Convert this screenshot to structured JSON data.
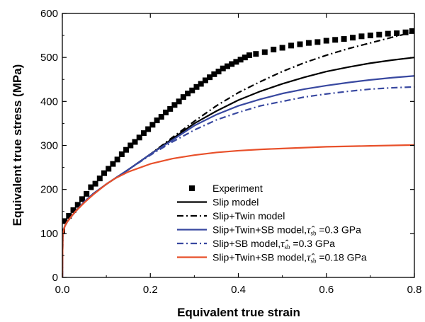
{
  "chart_data": {
    "type": "line",
    "xlabel": "Equivalent true strain",
    "ylabel": "Equivalent true stress (MPa)",
    "xlim": [
      0,
      0.8
    ],
    "ylim": [
      0,
      600
    ],
    "x_ticks": [
      "0.0",
      "0.2",
      "0.4",
      "0.6",
      "0.8"
    ],
    "y_ticks": [
      "0",
      "100",
      "200",
      "300",
      "400",
      "500",
      "600"
    ],
    "grid": false,
    "legend_position": "bottom-right",
    "series": [
      {
        "name": "Experiment",
        "style": "square-markers",
        "color": "#000000",
        "x": [
          0.0,
          0.005,
          0.015,
          0.025,
          0.035,
          0.045,
          0.055,
          0.065,
          0.075,
          0.085,
          0.095,
          0.105,
          0.115,
          0.125,
          0.135,
          0.145,
          0.155,
          0.165,
          0.175,
          0.185,
          0.195,
          0.205,
          0.215,
          0.225,
          0.235,
          0.245,
          0.255,
          0.265,
          0.275,
          0.285,
          0.295,
          0.305,
          0.315,
          0.325,
          0.335,
          0.345,
          0.355,
          0.365,
          0.375,
          0.385,
          0.395,
          0.405,
          0.415,
          0.425,
          0.44,
          0.46,
          0.48,
          0.5,
          0.52,
          0.54,
          0.56,
          0.58,
          0.6,
          0.62,
          0.64,
          0.66,
          0.68,
          0.7,
          0.72,
          0.74,
          0.76,
          0.78,
          0.795
        ],
        "y": [
          105,
          128,
          140,
          153,
          165,
          178,
          190,
          205,
          213,
          225,
          237,
          247,
          258,
          268,
          280,
          290,
          300,
          308,
          318,
          328,
          337,
          347,
          357,
          365,
          375,
          383,
          392,
          400,
          410,
          418,
          425,
          433,
          440,
          448,
          455,
          462,
          468,
          475,
          480,
          485,
          490,
          495,
          500,
          505,
          508,
          512,
          518,
          522,
          527,
          530,
          533,
          535,
          538,
          540,
          542,
          545,
          548,
          550,
          552,
          554,
          555,
          557,
          560
        ]
      },
      {
        "name": "Slip model",
        "style": "solid",
        "color": "#000000",
        "x": [
          0.0,
          0.001,
          0.005,
          0.01,
          0.02,
          0.03,
          0.05,
          0.07,
          0.1,
          0.15,
          0.2,
          0.25,
          0.3,
          0.35,
          0.4,
          0.45,
          0.5,
          0.55,
          0.6,
          0.65,
          0.7,
          0.75,
          0.8
        ],
        "y": [
          0,
          95,
          115,
          125,
          138,
          150,
          172,
          190,
          212,
          245,
          280,
          315,
          350,
          378,
          403,
          423,
          440,
          455,
          468,
          478,
          487,
          494,
          500
        ]
      },
      {
        "name": "Slip+Twin model",
        "style": "dash-dot",
        "color": "#000000",
        "x": [
          0.0,
          0.001,
          0.005,
          0.01,
          0.02,
          0.03,
          0.05,
          0.07,
          0.1,
          0.15,
          0.2,
          0.25,
          0.3,
          0.35,
          0.4,
          0.45,
          0.5,
          0.55,
          0.6,
          0.65,
          0.7,
          0.75,
          0.8
        ],
        "y": [
          0,
          95,
          115,
          125,
          138,
          150,
          172,
          190,
          212,
          245,
          280,
          318,
          355,
          390,
          420,
          445,
          468,
          488,
          505,
          520,
          533,
          546,
          558
        ]
      },
      {
        "name": "Slip+Twin+SB model,τ̂sb =0.3 GPa",
        "label_text": "Slip+Twin+SB model,",
        "label_value": "=0.3 GPa",
        "style": "solid",
        "color": "#3848a0",
        "x": [
          0.0,
          0.001,
          0.005,
          0.01,
          0.02,
          0.03,
          0.05,
          0.07,
          0.1,
          0.15,
          0.2,
          0.25,
          0.3,
          0.35,
          0.4,
          0.45,
          0.5,
          0.55,
          0.6,
          0.65,
          0.7,
          0.75,
          0.8
        ],
        "y": [
          0,
          95,
          115,
          125,
          138,
          150,
          172,
          190,
          212,
          245,
          280,
          312,
          345,
          370,
          390,
          405,
          418,
          428,
          436,
          443,
          449,
          454,
          458
        ]
      },
      {
        "name": "Slip+SB model,τ̂sb=0.3 GPa",
        "label_text": "Slip+SB model,",
        "label_value": "=0.3 GPa",
        "style": "dash-dot",
        "color": "#3848a0",
        "x": [
          0.0,
          0.001,
          0.005,
          0.01,
          0.02,
          0.03,
          0.05,
          0.07,
          0.1,
          0.15,
          0.2,
          0.25,
          0.3,
          0.35,
          0.4,
          0.45,
          0.5,
          0.55,
          0.6,
          0.65,
          0.7,
          0.75,
          0.8
        ],
        "y": [
          0,
          95,
          115,
          125,
          138,
          150,
          172,
          190,
          212,
          245,
          278,
          308,
          335,
          358,
          375,
          390,
          400,
          410,
          417,
          423,
          428,
          431,
          433
        ]
      },
      {
        "name": "Slip+Twin+SB model,τ̂sb =0.18 GPa",
        "label_text": "Slip+Twin+SB model,",
        "label_value": "=0.18 GPa",
        "style": "solid",
        "color": "#e8502a",
        "x": [
          0.0,
          0.001,
          0.005,
          0.01,
          0.02,
          0.03,
          0.05,
          0.07,
          0.1,
          0.12,
          0.15,
          0.2,
          0.25,
          0.3,
          0.35,
          0.4,
          0.45,
          0.5,
          0.55,
          0.6,
          0.65,
          0.7,
          0.75,
          0.8
        ],
        "y": [
          0,
          95,
          115,
          125,
          138,
          150,
          170,
          188,
          212,
          225,
          240,
          258,
          270,
          278,
          284,
          288,
          291,
          293,
          295,
          297,
          298,
          299,
          300,
          301
        ]
      }
    ],
    "legend_symbol": {
      "hat_char": "τ̂",
      "subscript": "sb"
    }
  }
}
